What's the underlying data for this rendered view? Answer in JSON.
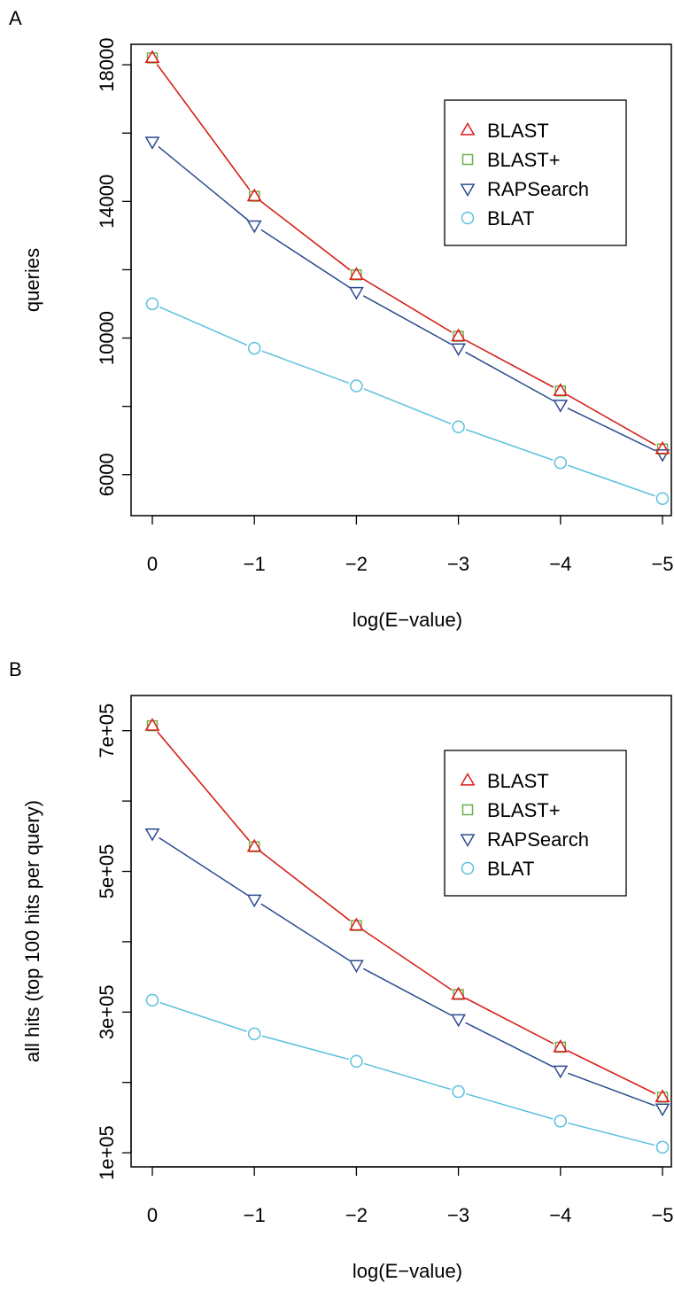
{
  "panels": [
    {
      "letter": "A",
      "ylabel": "queries",
      "xlabel": "log(E−value)",
      "yticks": [
        "6000",
        "10000",
        "14000",
        "18000"
      ],
      "xticks": [
        "0",
        "−1",
        "−2",
        "−3",
        "−4",
        "−5"
      ]
    },
    {
      "letter": "B",
      "ylabel": "all hits (top 100 hits per query)",
      "xlabel": "log(E−value)",
      "yticks": [
        "1e+05",
        "3e+05",
        "5e+05",
        "7e+05"
      ],
      "xticks": [
        "0",
        "−1",
        "−2",
        "−3",
        "−4",
        "−5"
      ]
    }
  ],
  "legend": [
    {
      "name": "BLAST",
      "symbol": "triangle-up",
      "color": "#e31a1c"
    },
    {
      "name": "BLAST+",
      "symbol": "square",
      "color": "#6ab04c"
    },
    {
      "name": "RAPSearch",
      "symbol": "triangle-down",
      "color": "#2c4a8f"
    },
    {
      "name": "BLAT",
      "symbol": "circle",
      "color": "#5bc0de"
    }
  ],
  "chart_data": [
    {
      "type": "line",
      "x": [
        0,
        -1,
        -2,
        -3,
        -4,
        -5
      ],
      "xlabel": "log(E−value)",
      "ylabel": "queries",
      "ylim": [
        4800,
        18600
      ],
      "xlim": [
        0.15,
        -5.15
      ],
      "grid": false,
      "legend_position": "top-right",
      "series": [
        {
          "name": "BLAST",
          "values": [
            18200,
            14150,
            11850,
            10050,
            8450,
            6750
          ]
        },
        {
          "name": "BLAST+",
          "values": [
            18200,
            14150,
            11850,
            10050,
            8450,
            6750
          ]
        },
        {
          "name": "RAPSearch",
          "values": [
            15750,
            13300,
            11350,
            9700,
            8050,
            6600
          ]
        },
        {
          "name": "BLAT",
          "values": [
            11000,
            9700,
            8600,
            7400,
            6350,
            5300
          ]
        }
      ]
    },
    {
      "type": "line",
      "x": [
        0,
        -1,
        -2,
        -3,
        -4,
        -5
      ],
      "xlabel": "log(E−value)",
      "ylabel": "all hits (top 100 hits per query)",
      "ylim": [
        80000,
        750000
      ],
      "xlim": [
        0.15,
        -5.15
      ],
      "grid": false,
      "legend_position": "top-right",
      "series": [
        {
          "name": "BLAST",
          "values": [
            707000,
            535000,
            423000,
            325000,
            250000,
            179000
          ]
        },
        {
          "name": "BLAST+",
          "values": [
            707000,
            535000,
            423000,
            325000,
            250000,
            179000
          ]
        },
        {
          "name": "RAPSearch",
          "values": [
            554000,
            460000,
            367000,
            290000,
            217000,
            163000
          ]
        },
        {
          "name": "BLAT",
          "values": [
            317000,
            269000,
            230000,
            187000,
            145000,
            108000
          ]
        }
      ]
    }
  ]
}
